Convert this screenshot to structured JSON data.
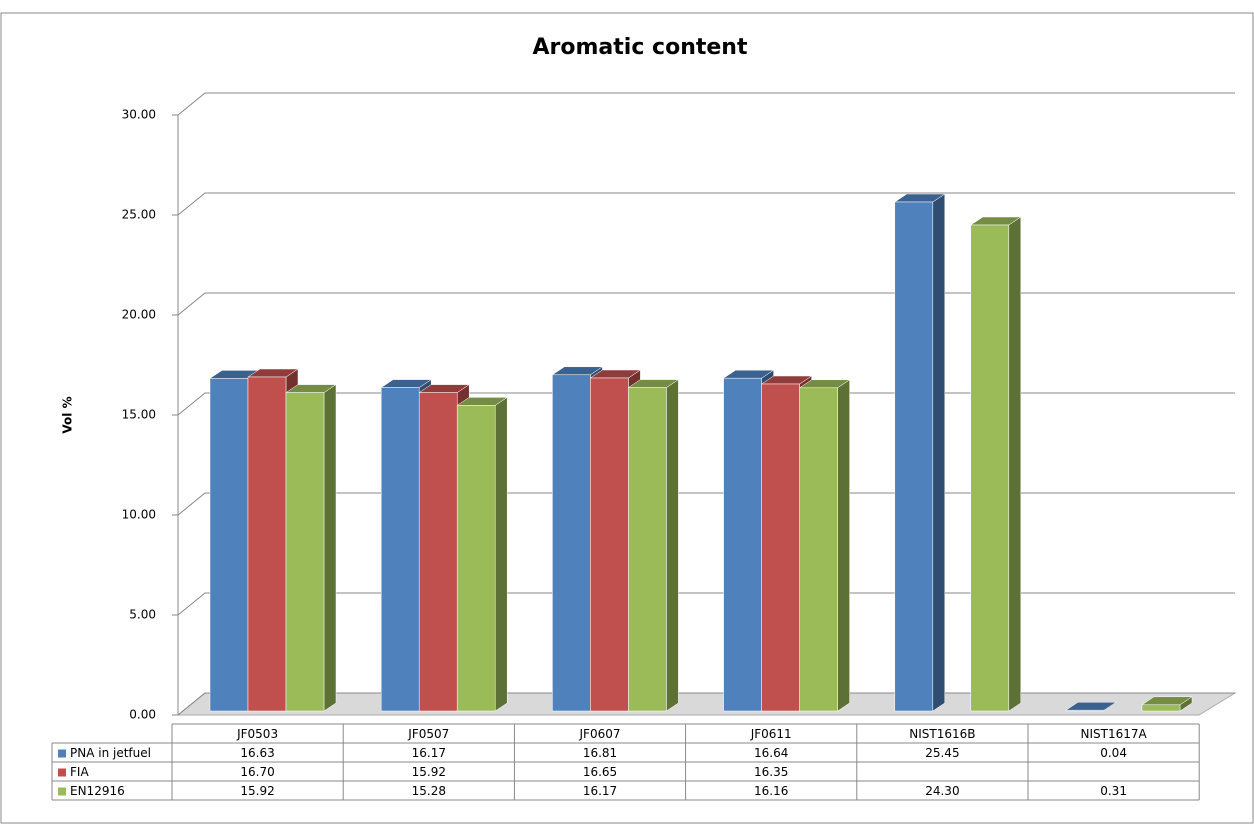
{
  "chart_data": {
    "type": "bar3d",
    "title": "Aromatic content",
    "y_label": "Vol %",
    "categories": [
      "JF0503",
      "JF0507",
      "JF0607",
      "JF0611",
      "NIST1616B",
      "NIST1617A"
    ],
    "series": [
      {
        "name": "PNA in jetfuel",
        "color": "#4f81bd",
        "values": [
          16.63,
          16.17,
          16.81,
          16.64,
          25.45,
          0.04
        ],
        "value_labels": [
          "16.63",
          "16.17",
          "16.81",
          "16.64",
          "25.45",
          "0.04"
        ]
      },
      {
        "name": "FIA",
        "color": "#c0504d",
        "values": [
          16.7,
          15.92,
          16.65,
          16.35,
          null,
          null
        ],
        "value_labels": [
          "16.70",
          "15.92",
          "16.65",
          "16.35",
          null,
          null
        ]
      },
      {
        "name": "EN12916",
        "color": "#9bbb59",
        "values": [
          15.92,
          15.28,
          16.17,
          16.16,
          24.3,
          0.31
        ],
        "value_labels": [
          "15.92",
          "15.28",
          "16.17",
          "16.16",
          "24.30",
          "0.31"
        ]
      }
    ],
    "ylim": [
      0,
      30
    ],
    "yticks": [
      {
        "value": 0,
        "label": "0.00"
      },
      {
        "value": 5,
        "label": "5.00"
      },
      {
        "value": 10,
        "label": "10.00"
      },
      {
        "value": 15,
        "label": "15.00"
      },
      {
        "value": 20,
        "label": "20.00"
      },
      {
        "value": 25,
        "label": "25.00"
      },
      {
        "value": 30,
        "label": "30.00"
      }
    ],
    "grid": true
  }
}
